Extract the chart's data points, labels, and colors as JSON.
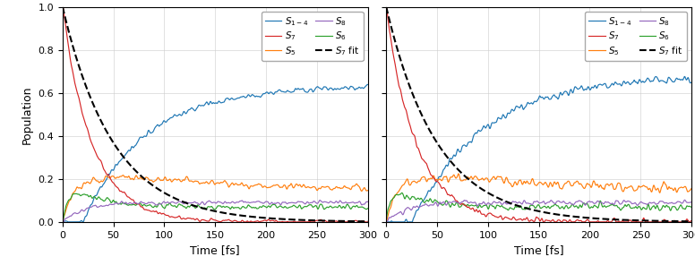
{
  "xlabel": "Time [fs]",
  "ylabel": "Population",
  "xlim": [
    0,
    300
  ],
  "ylim": [
    0.0,
    1.0
  ],
  "xticks": [
    0,
    50,
    100,
    150,
    200,
    250,
    300
  ],
  "yticks": [
    0.0,
    0.2,
    0.4,
    0.6,
    0.8,
    1.0
  ],
  "colors": {
    "S14": "#1f77b4",
    "S5": "#ff7f0e",
    "S6": "#2ca02c",
    "S7": "#d62728",
    "S8": "#9467bd",
    "fit": "#000000"
  },
  "legend_labels": {
    "S14": "$S_{1-4}$",
    "S5": "$S_5$",
    "S6": "$S_6$",
    "S7": "$S_7$",
    "S8": "$S_8$",
    "fit": "$S_7$ fit"
  },
  "figsize": [
    7.76,
    3.06
  ],
  "dpi": 100
}
